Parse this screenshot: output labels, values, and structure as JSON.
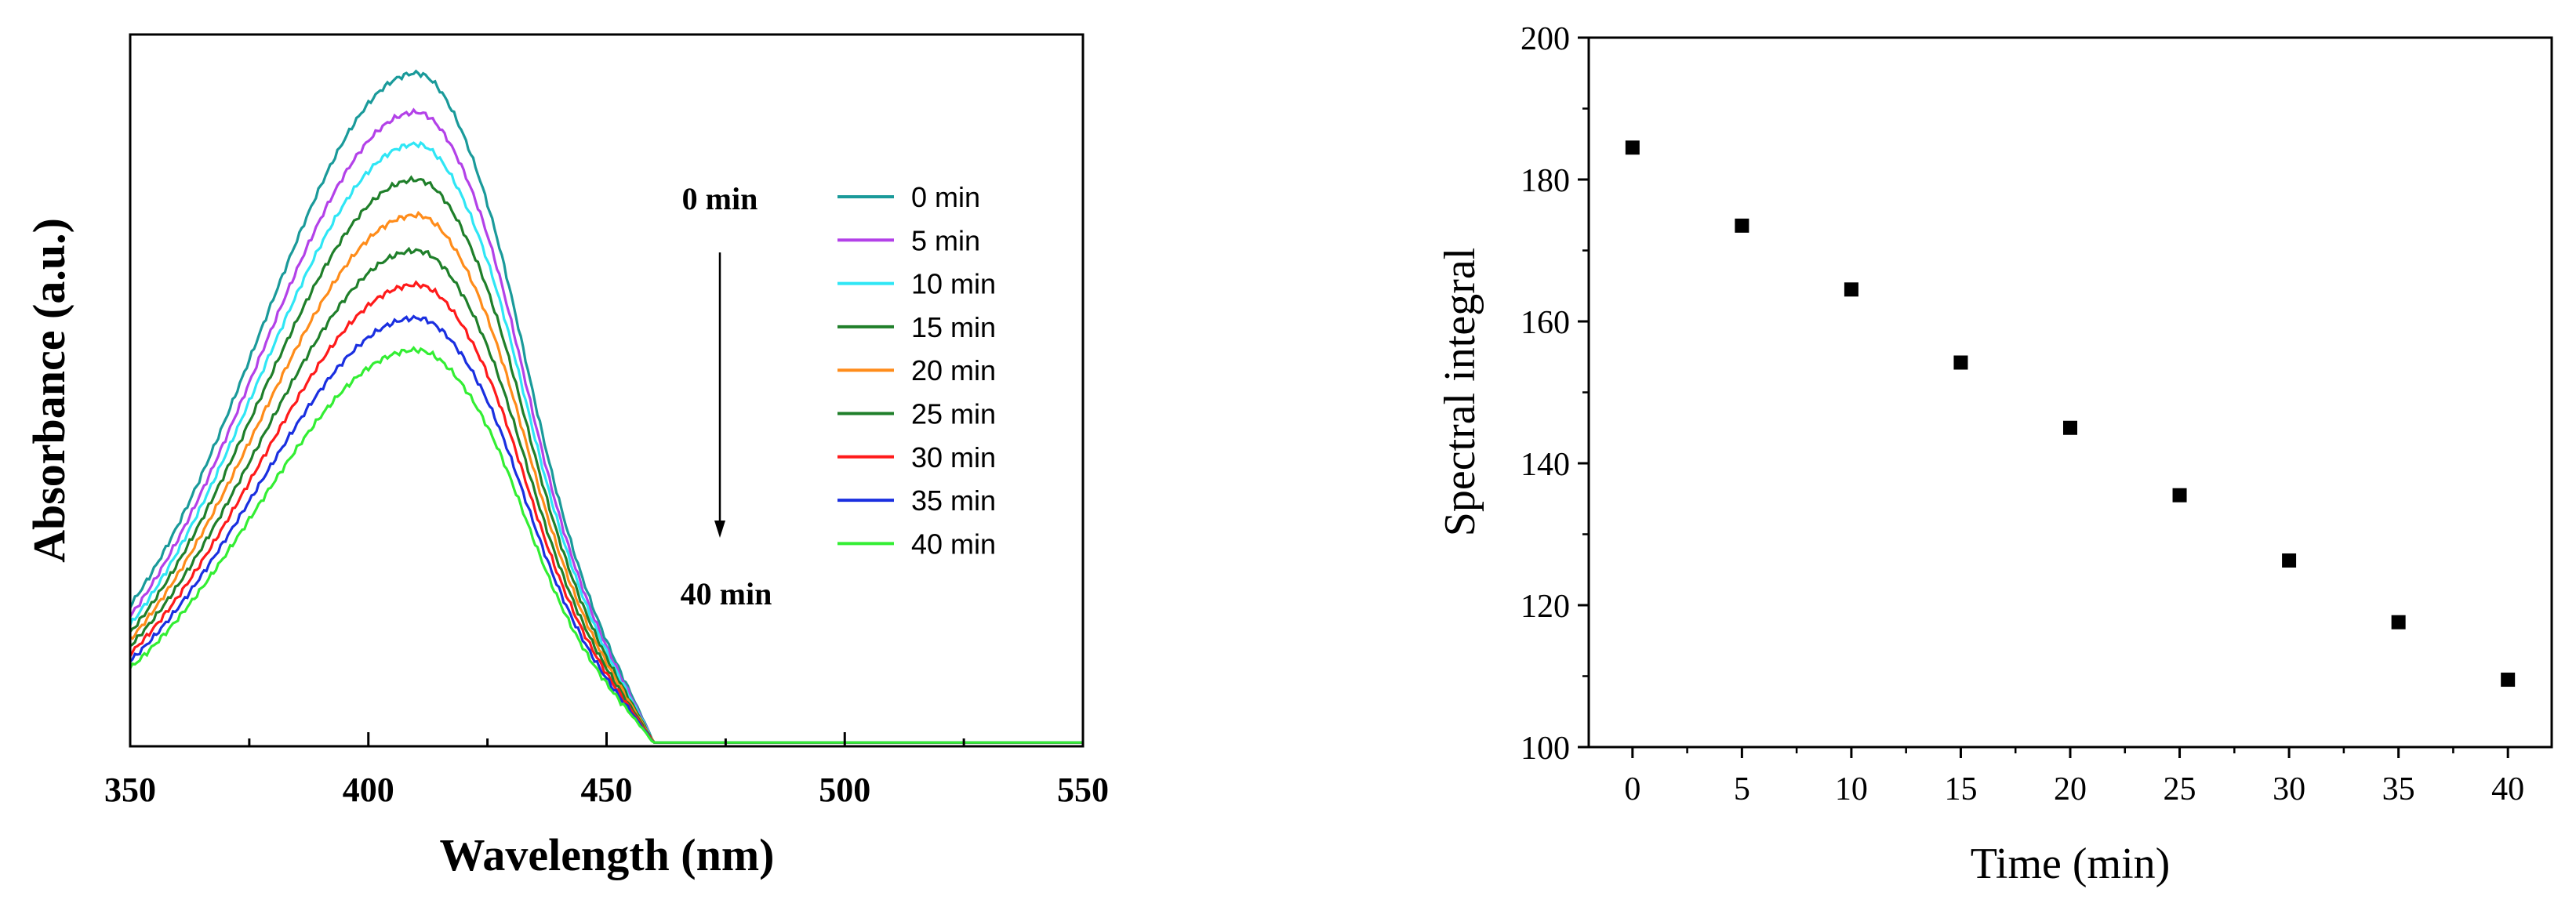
{
  "chart_data": [
    {
      "type": "line",
      "xlabel": "Wavelength (nm)",
      "ylabel": "Absorbance (a.u.)",
      "xlim": [
        350,
        550
      ],
      "ylim": [
        0,
        1
      ],
      "x_ticks": [
        "350",
        "400",
        "450",
        "500",
        "550"
      ],
      "y_ticks_shown": false,
      "grid": false,
      "legend_placement": "top-right",
      "annotation_top": "0 min",
      "annotation_bottom": "40 min",
      "annotation_arrow": "down",
      "peak_wavelength": 410,
      "series": [
        {
          "name": "0 min",
          "color": "#1a9a9a",
          "peak": 0.945,
          "at_350": 0.195
        },
        {
          "name": "5 min",
          "color": "#b341e8",
          "peak": 0.89,
          "at_350": 0.18
        },
        {
          "name": "10 min",
          "color": "#2fe6f5",
          "peak": 0.845,
          "at_350": 0.168
        },
        {
          "name": "15 min",
          "color": "#1f7f2a",
          "peak": 0.795,
          "at_350": 0.157
        },
        {
          "name": "20 min",
          "color": "#ff8c1a",
          "peak": 0.745,
          "at_350": 0.147
        },
        {
          "name": "25 min",
          "color": "#1f7f2a",
          "peak": 0.695,
          "at_350": 0.138
        },
        {
          "name": "30 min",
          "color": "#ff1a1a",
          "peak": 0.647,
          "at_350": 0.127
        },
        {
          "name": "35 min",
          "color": "#1a2fe0",
          "peak": 0.6,
          "at_350": 0.117
        },
        {
          "name": "40 min",
          "color": "#33ee33",
          "peak": 0.555,
          "at_350": 0.107
        }
      ]
    },
    {
      "type": "scatter",
      "xlabel": "Time (min)",
      "ylabel": "Spectral integral",
      "xlim": [
        -2,
        42
      ],
      "ylim": [
        100,
        200
      ],
      "x_ticks": [
        "0",
        "5",
        "10",
        "15",
        "20",
        "25",
        "30",
        "35",
        "40"
      ],
      "y_ticks": [
        "100",
        "120",
        "140",
        "160",
        "180",
        "200"
      ],
      "grid": false,
      "marker_color": "#000000",
      "x": [
        0,
        5,
        10,
        15,
        20,
        25,
        30,
        35,
        40
      ],
      "y": [
        184.5,
        173.5,
        164.5,
        154.2,
        145.0,
        135.5,
        126.3,
        117.6,
        109.5
      ]
    }
  ]
}
